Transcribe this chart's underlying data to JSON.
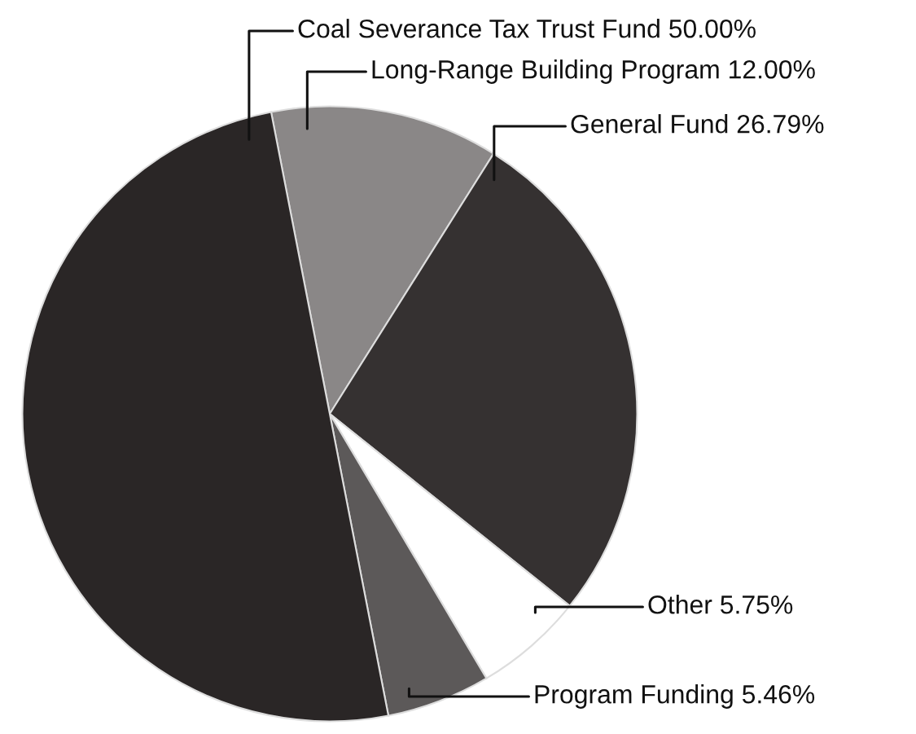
{
  "chart_data": {
    "type": "pie",
    "categories": [
      "Long-Range Building Program",
      "General Fund",
      "Other",
      "Program Funding",
      "Coal Severance Tax Trust Fund"
    ],
    "values": [
      12.0,
      26.79,
      5.75,
      5.46,
      50.0
    ],
    "value_labels": [
      "12.00%",
      "26.79%",
      "5.75%",
      "5.46%",
      "50.00%"
    ],
    "colors": [
      "#8a8787",
      "#353131",
      "#ffffff",
      "#5c5959",
      "#2a2626"
    ],
    "legend": false
  }
}
